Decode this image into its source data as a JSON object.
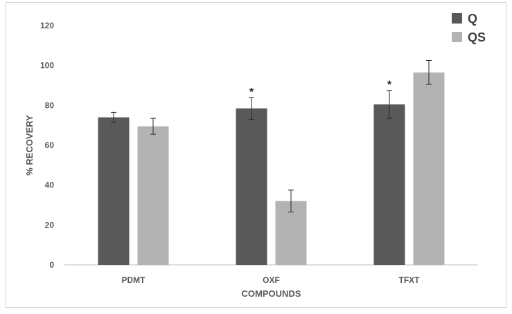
{
  "chart_data": {
    "type": "bar",
    "title": "",
    "xlabel": "COMPOUNDS",
    "ylabel": "% RECOVERY",
    "ylim": [
      0,
      120
    ],
    "yticks": [
      0,
      20,
      40,
      60,
      80,
      100,
      120
    ],
    "categories": [
      "PDMT",
      "OXF",
      "TFXT"
    ],
    "series": [
      {
        "name": "Q",
        "color": "#595959",
        "values": [
          74,
          78.5,
          80.5
        ],
        "errors": [
          2.5,
          5.5,
          7
        ]
      },
      {
        "name": "QS",
        "color": "#b3b3b3",
        "values": [
          69.5,
          32,
          96.5
        ],
        "errors": [
          4,
          5.5,
          6
        ]
      }
    ],
    "annotations": [
      {
        "category": "OXF",
        "series": "Q",
        "text": "*"
      },
      {
        "category": "TFXT",
        "series": "Q",
        "text": "*"
      }
    ],
    "grid": false,
    "legend_position": "top-right"
  }
}
